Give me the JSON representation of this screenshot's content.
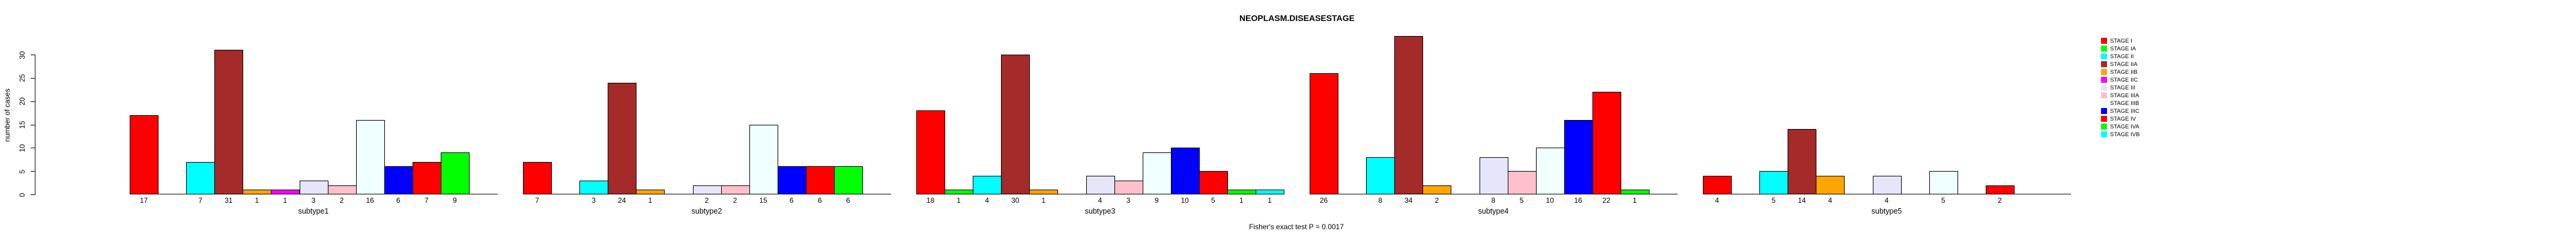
{
  "chart_data": {
    "type": "bar",
    "title": "NEOPLASM.DISEASESTAGE",
    "ylabel": "number of cases",
    "footer": "Fisher's exact test P = 0.0017",
    "ylim": [
      0,
      30
    ],
    "yticks": [
      0,
      5,
      10,
      15,
      20,
      25,
      30
    ],
    "grid": false,
    "legend_position": "top-right",
    "categories": [
      "STAGE I",
      "STAGE IA",
      "STAGE II",
      "STAGE IIA",
      "STAGE IIB",
      "STAGE IIC",
      "STAGE III",
      "STAGE IIIA",
      "STAGE IIIB",
      "STAGE IIIC",
      "STAGE IV",
      "STAGE IVA",
      "STAGE IVB"
    ],
    "palette": [
      "#FF0000",
      "#00FF00",
      "#00FFFF",
      "#A52A2A",
      "#FFA500",
      "#FF00FF",
      "#E6E6FA",
      "#FFC0CB",
      "#F0FFFF",
      "#0000FF"
    ],
    "groups": [
      {
        "label": "subtype1",
        "values": [
          17,
          0,
          7,
          31,
          1,
          1,
          3,
          2,
          16,
          6,
          7,
          9,
          0
        ]
      },
      {
        "label": "subtype2",
        "values": [
          7,
          0,
          3,
          24,
          1,
          0,
          2,
          2,
          15,
          6,
          6,
          6,
          0
        ]
      },
      {
        "label": "subtype3",
        "values": [
          18,
          1,
          4,
          30,
          1,
          0,
          4,
          3,
          9,
          10,
          5,
          1,
          1
        ]
      },
      {
        "label": "subtype4",
        "values": [
          26,
          0,
          8,
          34,
          2,
          0,
          8,
          5,
          10,
          16,
          22,
          1,
          0
        ]
      },
      {
        "label": "subtype5",
        "values": [
          4,
          0,
          5,
          14,
          4,
          0,
          4,
          0,
          5,
          0,
          2,
          0,
          0
        ]
      }
    ]
  }
}
